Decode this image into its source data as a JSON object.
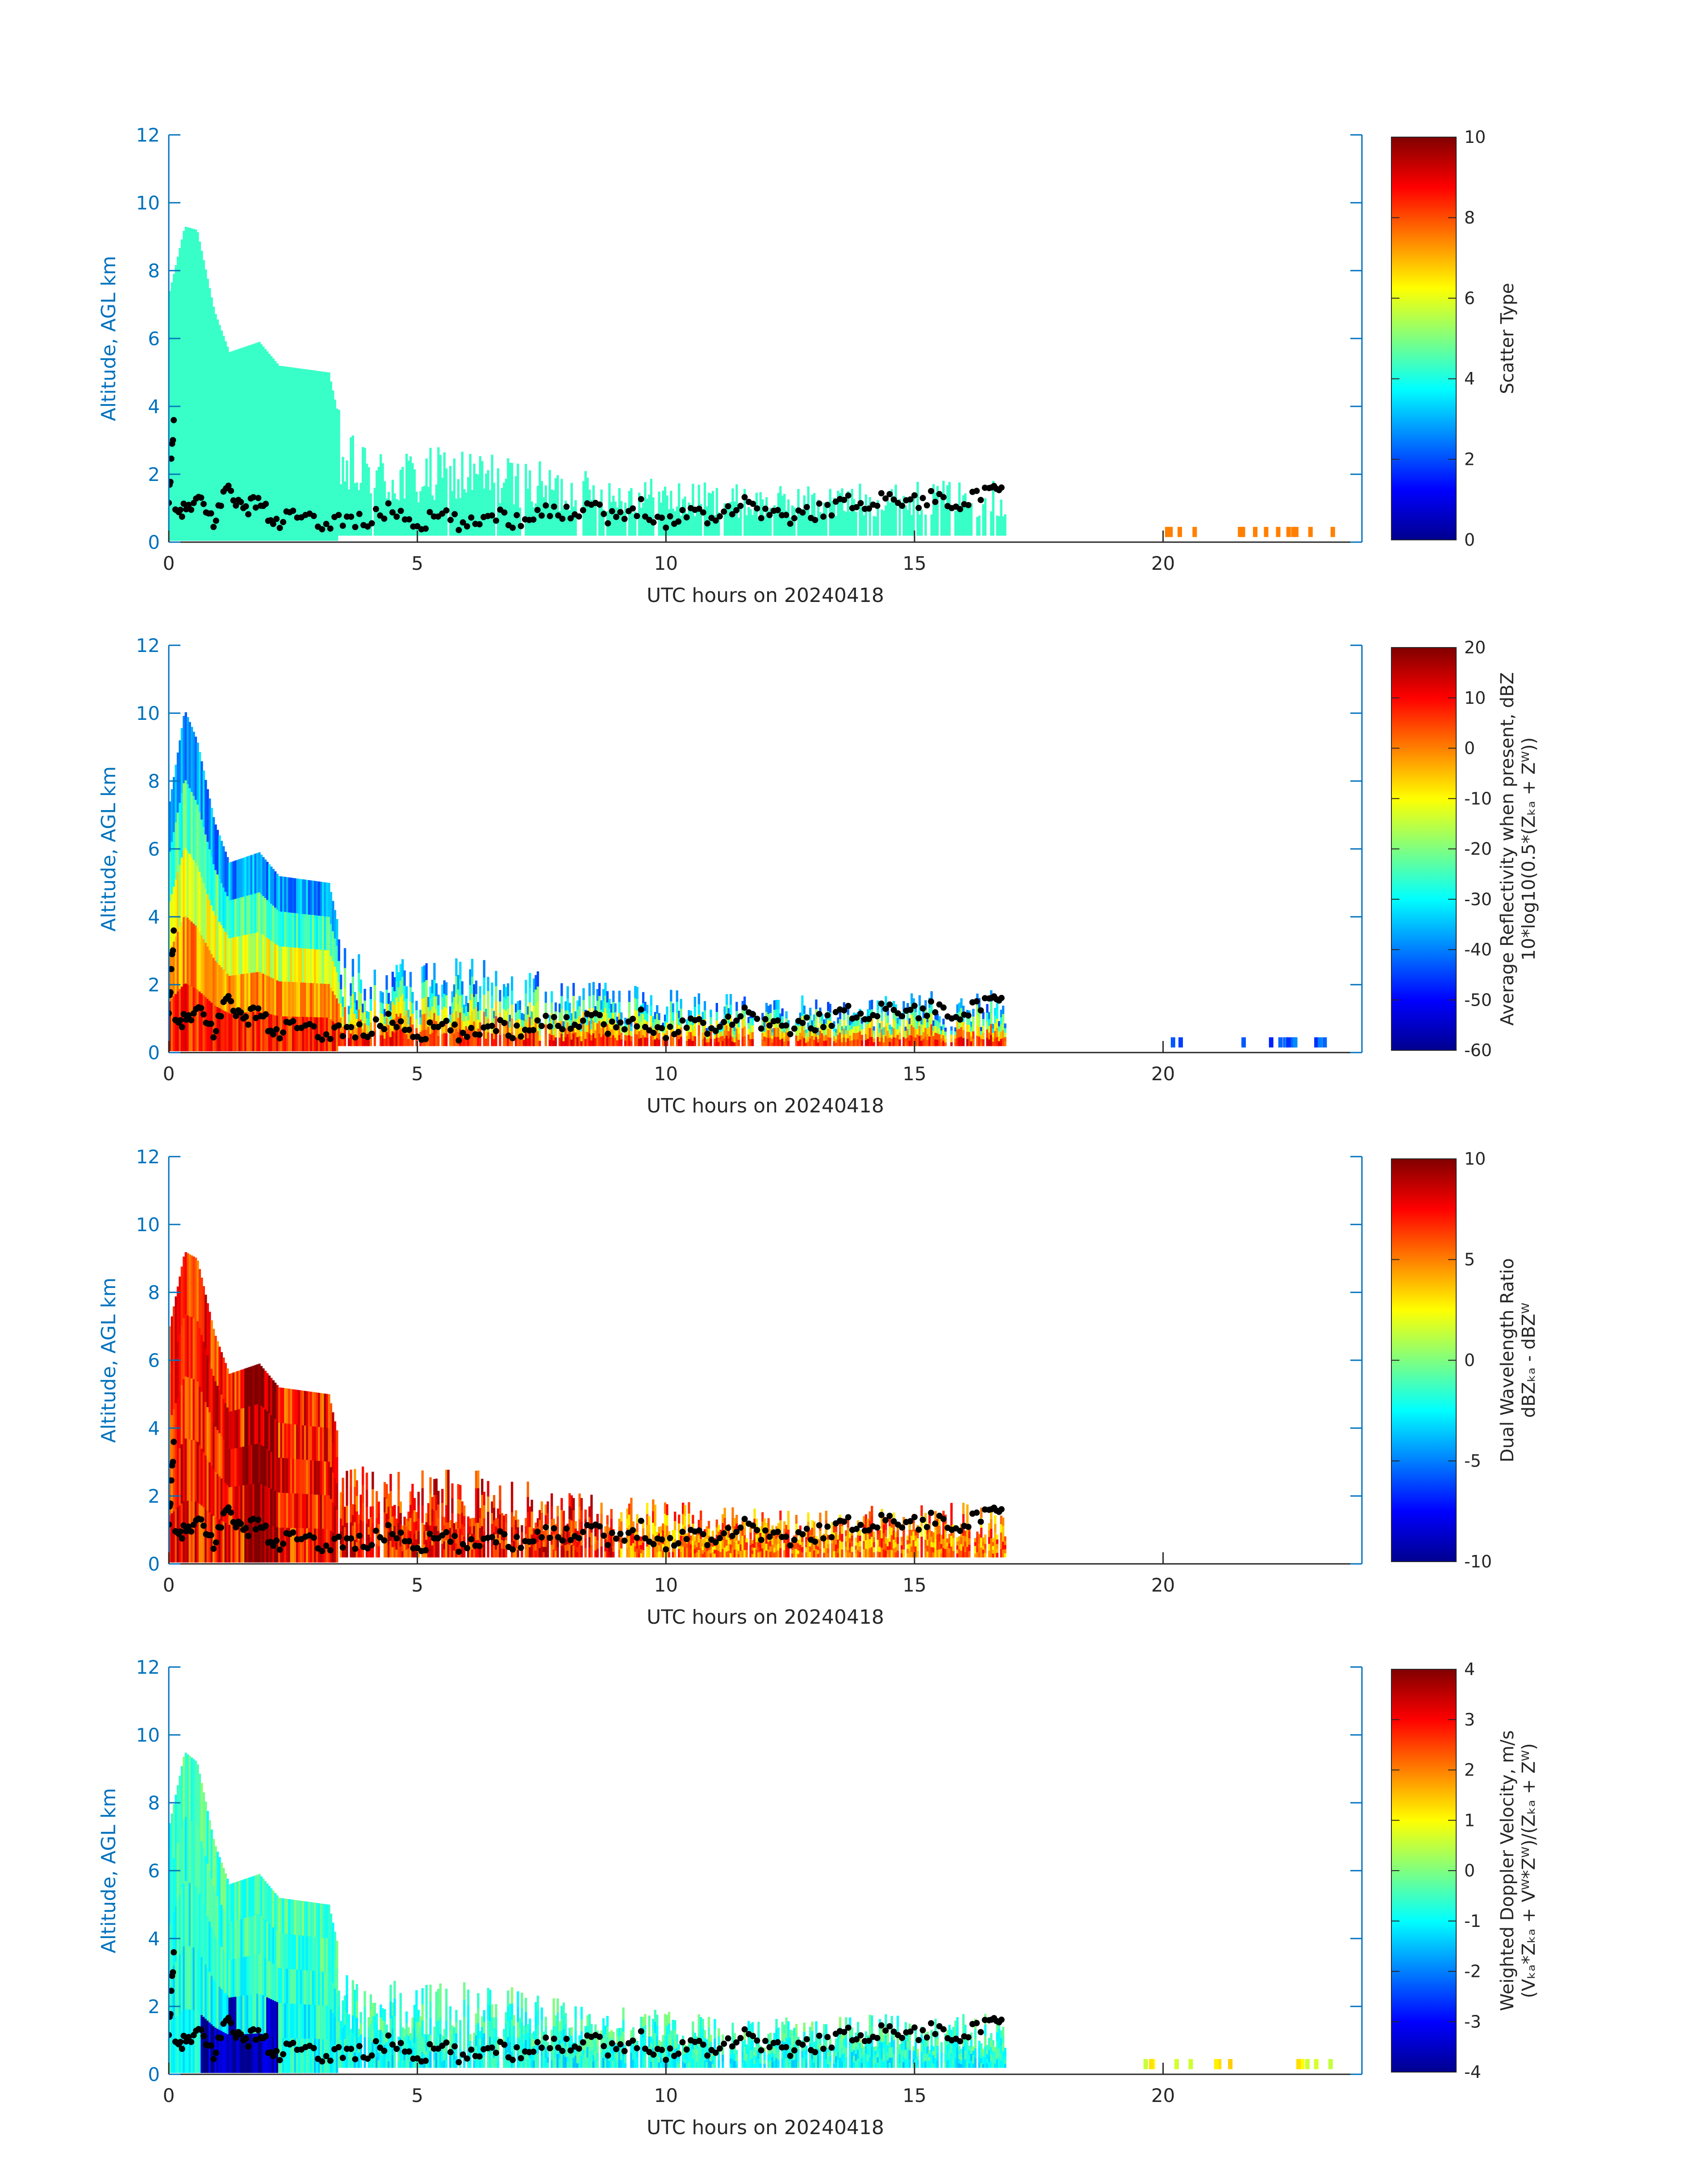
{
  "figure": {
    "x_axis_label": "UTC hours on 20240418",
    "y_axis_label": "Altitude, AGL km"
  },
  "panels": [
    {
      "colorbar_label_line1": "Scatter Type",
      "colorbar_label_line2": ""
    },
    {
      "colorbar_label_line1": "Average Reflectivity when present, dBZ",
      "colorbar_label_line2": "10*log10(0.5*(Zₖₐ + Zᵂ))"
    },
    {
      "colorbar_label_line1": "Dual Wavelength Ratio",
      "colorbar_label_line2": "dBZₖₐ - dBZᵂ"
    },
    {
      "colorbar_label_line1": "Weighted Doppler Velocity, m/s",
      "colorbar_label_line2": "(Vₖₐ*Zₖₐ + Vᵂ*Zᵂ)/(Zₖₐ + Zᵂ)"
    }
  ],
  "colors": {
    "axis_y": "#0072BD",
    "axis_x": "#262626",
    "cloud_base_points": "#000000"
  },
  "chart_data": [
    {
      "type": "heatmap",
      "xlabel": "UTC hours on 20240418",
      "ylabel": "Altitude, AGL km",
      "xlim": [
        0,
        24
      ],
      "ylim": [
        0,
        12
      ],
      "xticks": [
        0,
        5,
        10,
        15,
        20
      ],
      "yticks": [
        0,
        2,
        4,
        6,
        8,
        10,
        12
      ],
      "colorbar": {
        "label": "Scatter Type",
        "range": [
          0,
          10
        ],
        "ticks": [
          0,
          2,
          4,
          6,
          8,
          10
        ],
        "colormap": "jet"
      },
      "dominant_value": 4.3,
      "cloud_top_km": [
        [
          0,
          7.4
        ],
        [
          0.3,
          9.3
        ],
        [
          0.55,
          9.2
        ],
        [
          0.9,
          6.8
        ],
        [
          1.2,
          5.6
        ],
        [
          1.8,
          5.9
        ],
        [
          2.2,
          5.2
        ],
        [
          3.2,
          5.0
        ],
        [
          3.5,
          3.0
        ],
        [
          4.3,
          2.5
        ],
        [
          6.0,
          2.6
        ],
        [
          8.0,
          2.0
        ],
        [
          10.0,
          1.7
        ],
        [
          12.0,
          1.5
        ],
        [
          14.0,
          1.6
        ],
        [
          16.8,
          1.7
        ]
      ]
    },
    {
      "type": "heatmap",
      "xlabel": "UTC hours on 20240418",
      "ylabel": "Altitude, AGL km",
      "xlim": [
        0,
        24
      ],
      "ylim": [
        0,
        12
      ],
      "xticks": [
        0,
        5,
        10,
        15,
        20
      ],
      "yticks": [
        0,
        2,
        4,
        6,
        8,
        10,
        12
      ],
      "colorbar": {
        "label": "Average Reflectivity when present, dBZ",
        "range": [
          -60,
          20
        ],
        "ticks": [
          -60,
          -50,
          -40,
          -30,
          -20,
          -10,
          0,
          10,
          20
        ],
        "colormap": "jet"
      },
      "near_surface_dBZ": 10,
      "cloud_top_dBZ": -45,
      "cloud_top_km": [
        [
          0,
          7.4
        ],
        [
          0.3,
          10.1
        ],
        [
          0.55,
          9.2
        ],
        [
          0.9,
          6.8
        ],
        [
          1.2,
          5.6
        ],
        [
          1.8,
          5.9
        ],
        [
          2.2,
          5.2
        ],
        [
          3.2,
          5.0
        ],
        [
          3.5,
          3.0
        ],
        [
          4.3,
          2.5
        ],
        [
          6.0,
          2.6
        ],
        [
          8.0,
          2.0
        ],
        [
          10.0,
          1.7
        ],
        [
          12.0,
          1.5
        ],
        [
          14.0,
          1.6
        ],
        [
          16.8,
          1.7
        ]
      ]
    },
    {
      "type": "heatmap",
      "xlabel": "UTC hours on 20240418",
      "ylabel": "Altitude, AGL km",
      "xlim": [
        0,
        24
      ],
      "ylim": [
        0,
        12
      ],
      "xticks": [
        0,
        5,
        10,
        15,
        20
      ],
      "yticks": [
        0,
        2,
        4,
        6,
        8,
        10,
        12
      ],
      "colorbar": {
        "label": "Dual Wavelength Ratio",
        "range": [
          -10,
          10
        ],
        "ticks": [
          -10,
          -5,
          0,
          5,
          10
        ],
        "colormap": "jet"
      },
      "typical_value_dB": 7,
      "max_value_dB": 10,
      "cloud_top_km": [
        [
          0,
          7.0
        ],
        [
          0.3,
          9.2
        ],
        [
          0.55,
          9.0
        ],
        [
          0.9,
          6.8
        ],
        [
          1.2,
          5.6
        ],
        [
          1.8,
          5.9
        ],
        [
          2.2,
          5.2
        ],
        [
          3.2,
          5.0
        ],
        [
          3.5,
          3.0
        ],
        [
          4.3,
          2.5
        ],
        [
          6.0,
          2.6
        ],
        [
          8.0,
          2.0
        ],
        [
          10.0,
          1.7
        ],
        [
          12.0,
          1.5
        ],
        [
          14.0,
          1.6
        ],
        [
          16.8,
          1.7
        ]
      ]
    },
    {
      "type": "heatmap",
      "xlabel": "UTC hours on 20240418",
      "ylabel": "Altitude, AGL km",
      "xlim": [
        0,
        24
      ],
      "ylim": [
        0,
        12
      ],
      "xticks": [
        0,
        5,
        10,
        15,
        20
      ],
      "yticks": [
        0,
        2,
        4,
        6,
        8,
        10,
        12
      ],
      "colorbar": {
        "label": "Weighted Doppler Velocity, m/s",
        "range": [
          -4,
          4
        ],
        "ticks": [
          -4,
          -3,
          -2,
          -1,
          0,
          1,
          2,
          3,
          4
        ],
        "colormap": "jet"
      },
      "typical_value_ms": -1.0,
      "min_value_ms": -3.8,
      "cloud_top_km": [
        [
          0,
          7.4
        ],
        [
          0.3,
          9.5
        ],
        [
          0.55,
          9.2
        ],
        [
          0.9,
          6.8
        ],
        [
          1.2,
          5.6
        ],
        [
          1.8,
          5.9
        ],
        [
          2.2,
          5.2
        ],
        [
          3.2,
          5.0
        ],
        [
          3.5,
          3.0
        ],
        [
          4.3,
          2.5
        ],
        [
          6.0,
          2.6
        ],
        [
          8.0,
          2.0
        ],
        [
          10.0,
          1.7
        ],
        [
          12.0,
          1.5
        ],
        [
          14.0,
          1.6
        ],
        [
          16.8,
          1.7
        ]
      ]
    }
  ],
  "cloud_base_km": [
    [
      0.0,
      1.0
    ],
    [
      0.1,
      3.7
    ],
    [
      0.3,
      0.9
    ],
    [
      0.6,
      1.2
    ],
    [
      0.9,
      0.6
    ],
    [
      1.2,
      1.7
    ],
    [
      1.5,
      0.9
    ],
    [
      1.8,
      1.3
    ],
    [
      2.1,
      0.5
    ],
    [
      2.5,
      0.8
    ],
    [
      3.0,
      0.5
    ],
    [
      3.5,
      0.7
    ],
    [
      4.0,
      0.6
    ],
    [
      4.5,
      1.0
    ],
    [
      5.0,
      0.5
    ],
    [
      5.5,
      0.8
    ],
    [
      6.0,
      0.4
    ],
    [
      6.5,
      0.9
    ],
    [
      7.0,
      0.6
    ],
    [
      7.5,
      1.0
    ],
    [
      8.0,
      0.8
    ],
    [
      8.5,
      1.2
    ],
    [
      9.0,
      0.6
    ],
    [
      9.5,
      1.1
    ],
    [
      10.0,
      0.5
    ],
    [
      10.5,
      1.0
    ],
    [
      11.0,
      0.7
    ],
    [
      11.5,
      1.2
    ],
    [
      12.0,
      0.9
    ],
    [
      12.5,
      0.7
    ],
    [
      13.0,
      0.9
    ],
    [
      13.5,
      1.1
    ],
    [
      14.0,
      1.2
    ],
    [
      14.5,
      1.3
    ],
    [
      15.0,
      1.2
    ],
    [
      15.5,
      1.3
    ],
    [
      16.0,
      1.2
    ],
    [
      16.5,
      1.4
    ],
    [
      16.8,
      1.6
    ]
  ]
}
